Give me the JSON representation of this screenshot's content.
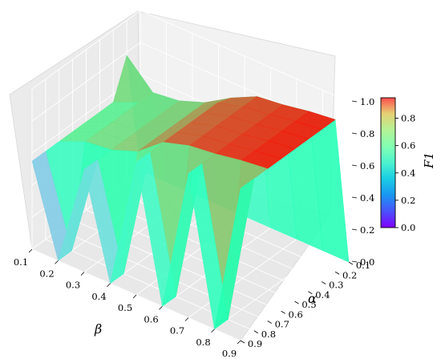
{
  "chart_data": {
    "type": "surface3d",
    "title": "",
    "x_axis": {
      "label": "β",
      "ticks": [
        "0.1",
        "0.2",
        "0.3",
        "0.4",
        "0.5",
        "0.6",
        "0.7",
        "0.8",
        "0.9"
      ]
    },
    "y_axis": {
      "label": "α",
      "ticks": [
        "0.1",
        "0.2",
        "0.3",
        "0.4",
        "0.5",
        "0.6",
        "0.7",
        "0.8",
        "0.9"
      ]
    },
    "z_axis": {
      "label": "",
      "ticks": [
        "0.0",
        "0.2",
        "0.4",
        "0.6",
        "0.8",
        "1.0"
      ],
      "range": [
        0,
        1
      ]
    },
    "colorbar": {
      "label": "F1",
      "ticks": [
        "0.0",
        "0.2",
        "0.4",
        "0.6",
        "0.8"
      ],
      "range": [
        0,
        0.95
      ]
    },
    "colormap": "rainbow",
    "alpha_values": [
      0.1,
      0.2,
      0.3,
      0.4,
      0.5,
      0.6,
      0.7,
      0.8,
      0.9
    ],
    "beta_values": [
      0.1,
      0.2,
      0.3,
      0.4,
      0.5,
      0.6,
      0.7,
      0.8,
      0.9
    ],
    "f1_by_beta_at_alpha_0_1": [
      0.0,
      0.0,
      0.0,
      0.0,
      0.0,
      0.0,
      0.0,
      0.0,
      0.0
    ],
    "f1_by_beta_at_alpha_0_2_to_0_9": [
      0.55,
      0.62,
      0.64,
      0.7,
      0.83,
      0.88,
      0.9,
      0.93,
      0.95
    ],
    "f1_at_beta_0_1_alpha_0_2": 0.78,
    "f1_at_beta_0_5_alpha_0_2": 0.8
  }
}
